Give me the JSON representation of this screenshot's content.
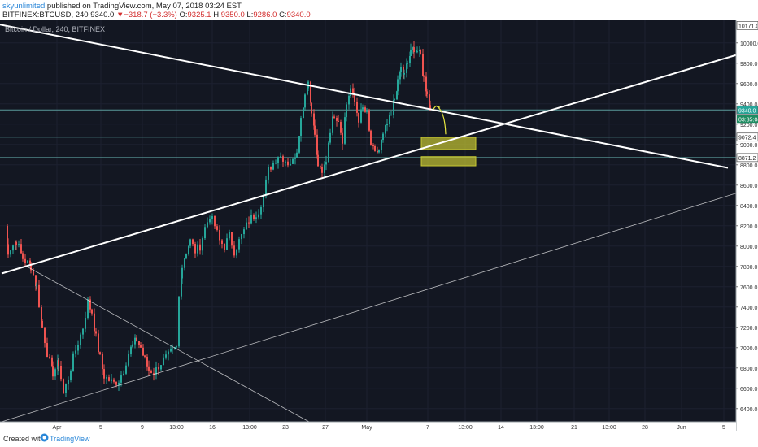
{
  "header": {
    "author": "skyunlimited",
    "published": " published on TradingView.com, May 07, 2018 03:24 EST",
    "symbol": "BITFINEX:BTCUSD, 240",
    "price": "9340.0",
    "arrow": "▼",
    "change": "−318.7 (−3.3%)",
    "ohlc_o_label": "O:",
    "ohlc_o": "9325.1",
    "ohlc_h_label": "H:",
    "ohlc_h": "9350.0",
    "ohlc_l_label": "L:",
    "ohlc_l": "9286.0",
    "ohlc_c_label": "C:",
    "ohlc_c": "9340.0"
  },
  "footer": {
    "created": "Created with",
    "brand": "TradingView"
  },
  "colors": {
    "background": "#131722",
    "up": "#26a69a",
    "down": "#ef5350",
    "trendline": "#ffffff",
    "zone": "#c8c832",
    "arrow": "#e8e840",
    "hline": "#5a9a9a",
    "price_badge": "#26a69a",
    "current_badge": "#1f8c62"
  },
  "chart_data": {
    "type": "candlestick",
    "title": "Bitcoin / Dollar, 240, BITFINEX",
    "ylim": [
      6270,
      10230
    ],
    "y_ticks": [
      6400,
      6600,
      6800,
      7000,
      7200,
      7400,
      7600,
      7800,
      8000,
      8200,
      8400,
      8600,
      8800,
      9000,
      9200,
      9400,
      9600,
      9800,
      10000
    ],
    "y_tick_labels": [
      "6400.0",
      "6600.0",
      "6800.0",
      "7000.0",
      "7200.0",
      "7400.0",
      "7600.0",
      "7800.0",
      "8000.0",
      "8200.0",
      "8400.0",
      "8600.0",
      "8800.0",
      "9000.0",
      "9200.0",
      "9400.0",
      "9600.0",
      "9800.0",
      "10000.0"
    ],
    "x_tick_labels": [
      {
        "i": 70,
        "label": "Apr"
      },
      {
        "i": 124,
        "label": "5"
      },
      {
        "i": 175,
        "label": "9"
      },
      {
        "i": 217,
        "label": "13:00"
      },
      {
        "i": 261,
        "label": "16"
      },
      {
        "i": 307,
        "label": "13:00"
      },
      {
        "i": 351,
        "label": "23"
      },
      {
        "i": 400,
        "label": "27"
      },
      {
        "i": 451,
        "label": "May"
      },
      {
        "i": 526,
        "label": "7"
      },
      {
        "i": 572,
        "label": "13:00"
      },
      {
        "i": 616,
        "label": "14"
      },
      {
        "i": 660,
        "label": "13:00"
      },
      {
        "i": 706,
        "label": "21"
      },
      {
        "i": 749,
        "label": "13:00"
      },
      {
        "i": 793,
        "label": "28"
      },
      {
        "i": 838,
        "label": "Jun"
      },
      {
        "i": 890,
        "label": "5"
      }
    ],
    "price_levels": [
      {
        "value": 9340.0,
        "label": "9340.0",
        "kind": "current"
      },
      {
        "value": 9072.4,
        "label": "9072.4",
        "kind": "level"
      },
      {
        "value": 8871.2,
        "label": "8871.2",
        "kind": "level"
      },
      {
        "value": 10171.0,
        "label": "10171.0",
        "kind": "top"
      }
    ],
    "countdown": "03:35:04",
    "anchors": [
      [
        6,
        8200
      ],
      [
        10,
        7950
      ],
      [
        20,
        8050
      ],
      [
        28,
        7880
      ],
      [
        38,
        7800
      ],
      [
        45,
        7600
      ],
      [
        52,
        7200
      ],
      [
        58,
        6950
      ],
      [
        65,
        6750
      ],
      [
        72,
        6850
      ],
      [
        78,
        6550
      ],
      [
        84,
        6700
      ],
      [
        90,
        6900
      ],
      [
        96,
        7050
      ],
      [
        102,
        7200
      ],
      [
        108,
        7450
      ],
      [
        113,
        7350
      ],
      [
        118,
        7100
      ],
      [
        123,
        6900
      ],
      [
        128,
        6720
      ],
      [
        134,
        6680
      ],
      [
        140,
        6650
      ],
      [
        146,
        6680
      ],
      [
        152,
        6780
      ],
      [
        158,
        6950
      ],
      [
        163,
        7020
      ],
      [
        168,
        7080
      ],
      [
        173,
        7000
      ],
      [
        178,
        6880
      ],
      [
        183,
        6780
      ],
      [
        189,
        6760
      ],
      [
        195,
        6820
      ],
      [
        201,
        6880
      ],
      [
        207,
        6920
      ],
      [
        212,
        6960
      ],
      [
        217,
        7000
      ],
      [
        220,
        7500
      ],
      [
        224,
        7800
      ],
      [
        229,
        7950
      ],
      [
        234,
        8050
      ],
      [
        240,
        7950
      ],
      [
        246,
        8000
      ],
      [
        252,
        8180
      ],
      [
        258,
        8300
      ],
      [
        264,
        8200
      ],
      [
        270,
        8050
      ],
      [
        276,
        8000
      ],
      [
        282,
        8100
      ],
      [
        288,
        7950
      ],
      [
        294,
        8050
      ],
      [
        300,
        8150
      ],
      [
        306,
        8250
      ],
      [
        312,
        8300
      ],
      [
        318,
        8350
      ],
      [
        324,
        8500
      ],
      [
        330,
        8750
      ],
      [
        336,
        8820
      ],
      [
        342,
        8900
      ],
      [
        348,
        8870
      ],
      [
        354,
        8820
      ],
      [
        360,
        8830
      ],
      [
        365,
        8950
      ],
      [
        370,
        9250
      ],
      [
        375,
        9500
      ],
      [
        379,
        9620
      ],
      [
        383,
        9350
      ],
      [
        387,
        9100
      ],
      [
        391,
        8800
      ],
      [
        396,
        8700
      ],
      [
        401,
        8850
      ],
      [
        406,
        9150
      ],
      [
        411,
        9300
      ],
      [
        416,
        9250
      ],
      [
        421,
        9050
      ],
      [
        426,
        9400
      ],
      [
        431,
        9550
      ],
      [
        436,
        9420
      ],
      [
        441,
        9250
      ],
      [
        446,
        9350
      ],
      [
        451,
        9300
      ],
      [
        456,
        9000
      ],
      [
        461,
        8900
      ],
      [
        466,
        8950
      ],
      [
        471,
        9080
      ],
      [
        476,
        9200
      ],
      [
        481,
        9280
      ],
      [
        485,
        9450
      ],
      [
        489,
        9600
      ],
      [
        493,
        9750
      ],
      [
        497,
        9680
      ],
      [
        501,
        9800
      ],
      [
        505,
        9900
      ],
      [
        509,
        9950
      ],
      [
        513,
        9920
      ],
      [
        517,
        9880
      ],
      [
        521,
        9650
      ],
      [
        525,
        9520
      ],
      [
        529,
        9340
      ]
    ],
    "trendlines": [
      {
        "name": "descending-resistance",
        "from": [
          0,
          10180
        ],
        "to": [
          895,
          8770
        ],
        "width": 2
      },
      {
        "name": "ascending-support",
        "from": [
          2,
          7730
        ],
        "to": [
          905,
          9880
        ],
        "width": 2
      },
      {
        "name": "lower-descending",
        "from": [
          35,
          7790
        ],
        "to": [
          380,
          6270
        ],
        "width": 0.8
      },
      {
        "name": "lower-ascending",
        "from": [
          2,
          6270
        ],
        "to": [
          905,
          8520
        ],
        "width": 0.8
      }
    ],
    "zones": [
      {
        "i0": 518,
        "i1": 585,
        "y0": 8950,
        "y1": 9070
      },
      {
        "i0": 518,
        "i1": 585,
        "y0": 8790,
        "y1": 8880
      }
    ],
    "projection_arrow": {
      "from": [
        536,
        9380
      ],
      "ctrl": [
        547,
        9340
      ],
      "to": [
        548,
        9100
      ]
    }
  }
}
